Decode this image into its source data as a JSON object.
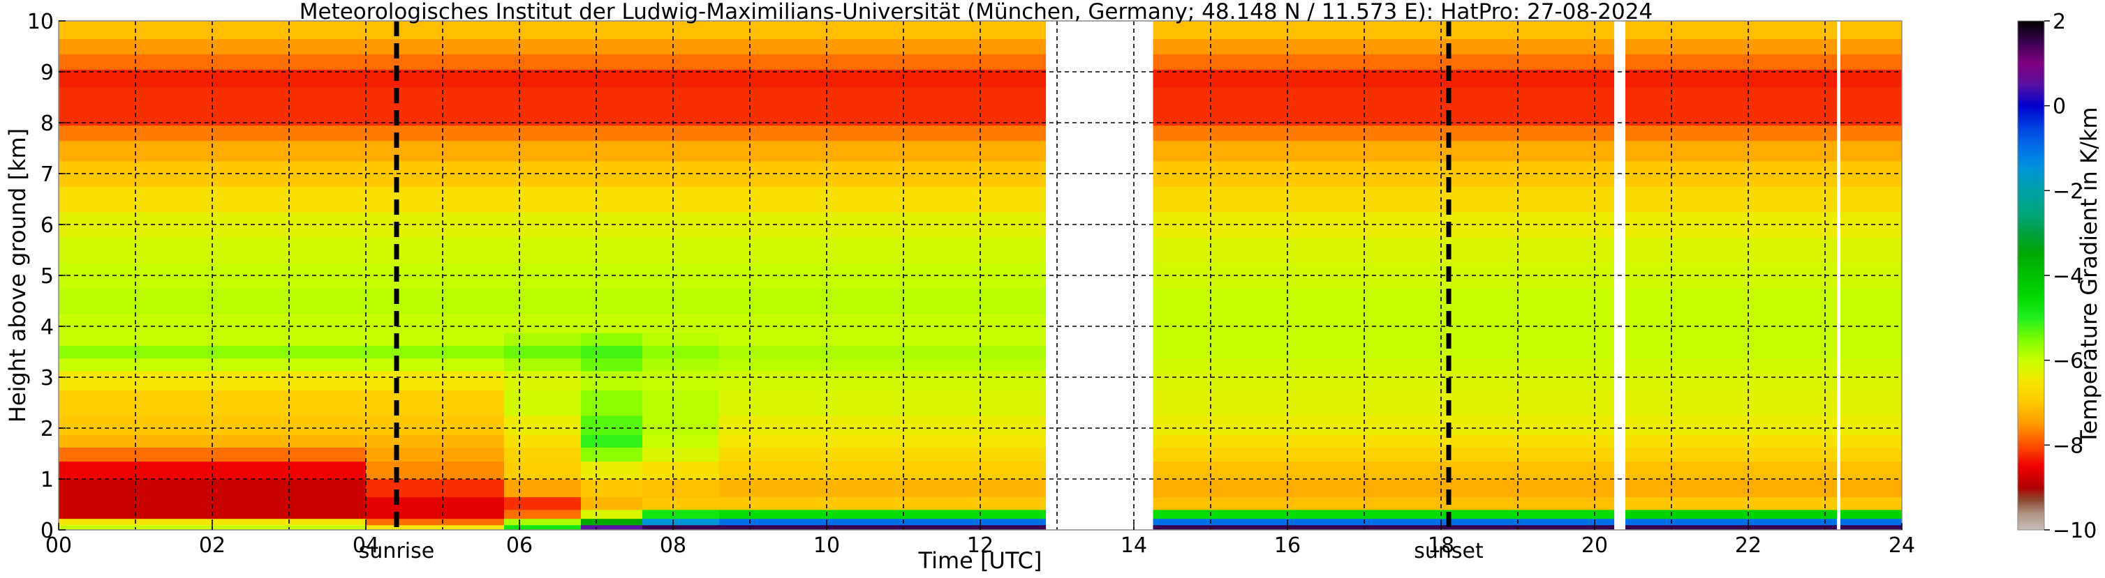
{
  "chart_data": {
    "type": "heatmap",
    "title": "Meteorologisches Institut der Ludwig-Maximilians-Universität (München, Germany; 48.148 N / 11.573 E):    HatPro: 27-08-2024",
    "xlabel": "Time [UTC]",
    "ylabel": "Height above ground [km]",
    "xlim": [
      0,
      24
    ],
    "ylim": [
      0,
      10
    ],
    "x_ticks": [
      0,
      2,
      4,
      6,
      8,
      10,
      12,
      14,
      16,
      18,
      20,
      22,
      24
    ],
    "x_tick_labels": [
      "00",
      "02",
      "04",
      "06",
      "08",
      "10",
      "12",
      "14",
      "16",
      "18",
      "20",
      "22",
      "24"
    ],
    "x_minor_gridlines": [
      1,
      3,
      5,
      7,
      9,
      11,
      13,
      15,
      17,
      19,
      21,
      23
    ],
    "y_ticks": [
      0,
      1,
      2,
      3,
      4,
      5,
      6,
      7,
      8,
      9,
      10
    ],
    "y_tick_labels": [
      "0",
      "1",
      "2",
      "3",
      "4",
      "5",
      "6",
      "7",
      "8",
      "9",
      "10"
    ],
    "grid": true,
    "colorbar": {
      "label": "Temperature Gradient in K/km",
      "range": [
        -10,
        2
      ],
      "ticks": [
        2,
        0,
        -2,
        -4,
        -6,
        -8,
        -10
      ],
      "tick_labels": [
        "2",
        "0",
        "−2",
        "−4",
        "−6",
        "−8",
        "−10"
      ],
      "stops": [
        {
          "value": 2.0,
          "color": "#000000"
        },
        {
          "value": 1.5,
          "color": "#3a0050"
        },
        {
          "value": 1.0,
          "color": "#800080"
        },
        {
          "value": 0.5,
          "color": "#5a10a0"
        },
        {
          "value": 0.0,
          "color": "#0000cd"
        },
        {
          "value": -0.5,
          "color": "#0040e0"
        },
        {
          "value": -1.0,
          "color": "#0070e8"
        },
        {
          "value": -1.5,
          "color": "#0095d8"
        },
        {
          "value": -2.0,
          "color": "#00a0a8"
        },
        {
          "value": -2.5,
          "color": "#00a580"
        },
        {
          "value": -3.0,
          "color": "#00a040"
        },
        {
          "value": -3.5,
          "color": "#00a800"
        },
        {
          "value": -4.0,
          "color": "#00c000"
        },
        {
          "value": -4.5,
          "color": "#00d800"
        },
        {
          "value": -5.0,
          "color": "#20ee20"
        },
        {
          "value": -5.5,
          "color": "#7cfc00"
        },
        {
          "value": -6.0,
          "color": "#c8ff00"
        },
        {
          "value": -6.5,
          "color": "#f5e600"
        },
        {
          "value": -7.0,
          "color": "#ffc800"
        },
        {
          "value": -7.5,
          "color": "#ff9a00"
        },
        {
          "value": -8.0,
          "color": "#ff5000"
        },
        {
          "value": -8.5,
          "color": "#ee0000"
        },
        {
          "value": -9.0,
          "color": "#b00000"
        },
        {
          "value": -9.3,
          "color": "#8a4a30"
        },
        {
          "value": -9.6,
          "color": "#b09080"
        },
        {
          "value": -10.0,
          "color": "#c8c0bc"
        }
      ]
    },
    "heights_km": [
      0.05,
      0.15,
      0.3,
      0.5,
      0.8,
      1.2,
      1.5,
      1.75,
      2.0,
      2.5,
      3.0,
      3.25,
      3.5,
      3.75,
      4.0,
      4.5,
      5.0,
      5.5,
      6.0,
      6.5,
      7.0,
      7.5,
      7.8,
      8.1,
      8.5,
      8.9,
      9.2,
      9.5,
      9.8
    ],
    "series": [
      {
        "time_range": [
          0,
          4
        ],
        "values": [
          -6.0,
          -6.5,
          -8.8,
          -8.8,
          -8.8,
          -8.5,
          -7.8,
          -7.2,
          -7.0,
          -6.9,
          -6.5,
          -6.0,
          -5.6,
          -6.0,
          -6.0,
          -5.9,
          -6.0,
          -6.1,
          -6.3,
          -6.6,
          -7.0,
          -7.3,
          -7.7,
          -8.2,
          -8.2,
          -8.3,
          -7.8,
          -7.5,
          -7.1
        ]
      },
      {
        "time_range": [
          4,
          5.8
        ],
        "values": [
          -6.5,
          -7.8,
          -8.6,
          -8.6,
          -8.2,
          -7.6,
          -7.4,
          -7.2,
          -7.0,
          -6.9,
          -6.5,
          -6.0,
          -5.6,
          -6.0,
          -6.0,
          -5.9,
          -6.0,
          -6.1,
          -6.3,
          -6.6,
          -7.0,
          -7.3,
          -7.7,
          -8.2,
          -8.2,
          -8.3,
          -7.8,
          -7.5,
          -7.1
        ]
      },
      {
        "time_range": [
          5.8,
          6.8
        ],
        "values": [
          -4.8,
          -5.8,
          -7.8,
          -8.2,
          -7.4,
          -6.9,
          -6.8,
          -6.6,
          -6.4,
          -6.1,
          -6.2,
          -5.8,
          -5.4,
          -5.8,
          -6.0,
          -5.9,
          -6.0,
          -6.1,
          -6.3,
          -6.6,
          -7.0,
          -7.3,
          -7.7,
          -8.2,
          -8.2,
          -8.3,
          -7.8,
          -7.5,
          -7.1
        ]
      },
      {
        "time_range": [
          6.8,
          7.6
        ],
        "values": [
          0.5,
          -3.5,
          -6.2,
          -7.2,
          -7.0,
          -6.4,
          -5.6,
          -5.1,
          -5.3,
          -5.6,
          -5.9,
          -5.4,
          -5.2,
          -5.6,
          -6.0,
          -5.9,
          -6.0,
          -6.1,
          -6.3,
          -6.6,
          -7.0,
          -7.3,
          -7.7,
          -8.2,
          -8.2,
          -8.3,
          -7.8,
          -7.5,
          -7.1
        ]
      },
      {
        "time_range": [
          7.6,
          8.6
        ],
        "values": [
          1.5,
          -1.5,
          -4.8,
          -7.0,
          -7.1,
          -6.6,
          -6.2,
          -6.0,
          -5.9,
          -5.9,
          -6.0,
          -5.8,
          -5.6,
          -5.9,
          -6.0,
          -5.9,
          -6.0,
          -6.1,
          -6.3,
          -6.6,
          -7.0,
          -7.3,
          -7.7,
          -8.2,
          -8.2,
          -8.3,
          -7.8,
          -7.5,
          -7.1
        ]
      },
      {
        "time_range": [
          8.6,
          12.85
        ],
        "values": [
          1.5,
          -1.0,
          -4.6,
          -7.0,
          -7.2,
          -6.9,
          -6.7,
          -6.5,
          -6.4,
          -6.2,
          -6.1,
          -5.9,
          -5.8,
          -6.0,
          -6.0,
          -5.9,
          -6.0,
          -6.1,
          -6.3,
          -6.6,
          -7.0,
          -7.3,
          -7.7,
          -8.2,
          -8.2,
          -8.3,
          -7.8,
          -7.5,
          -7.1
        ]
      },
      {
        "time_range": [
          14.25,
          20.25
        ],
        "values": [
          1.5,
          -1.0,
          -4.6,
          -7.1,
          -7.3,
          -7.1,
          -6.8,
          -6.6,
          -6.4,
          -6.3,
          -6.2,
          -6.1,
          -6.0,
          -6.0,
          -6.0,
          -6.0,
          -6.1,
          -6.2,
          -6.4,
          -6.7,
          -7.0,
          -7.3,
          -7.7,
          -8.2,
          -8.2,
          -8.3,
          -7.8,
          -7.5,
          -7.1
        ]
      },
      {
        "time_range": [
          20.4,
          23.15
        ],
        "values": [
          1.5,
          -1.0,
          -4.4,
          -7.0,
          -7.3,
          -7.1,
          -6.8,
          -6.6,
          -6.4,
          -6.3,
          -6.2,
          -6.1,
          -6.0,
          -6.0,
          -6.0,
          -6.0,
          -6.1,
          -6.2,
          -6.4,
          -6.7,
          -7.0,
          -7.3,
          -7.7,
          -8.2,
          -8.2,
          -8.3,
          -7.8,
          -7.5,
          -7.1
        ]
      },
      {
        "time_range": [
          23.2,
          24
        ],
        "values": [
          1.5,
          -1.0,
          -4.4,
          -7.0,
          -7.3,
          -7.1,
          -6.8,
          -6.6,
          -6.4,
          -6.3,
          -6.2,
          -6.1,
          -6.0,
          -6.0,
          -6.0,
          -6.0,
          -6.1,
          -6.2,
          -6.4,
          -6.7,
          -7.0,
          -7.3,
          -7.7,
          -8.2,
          -8.2,
          -8.3,
          -7.8,
          -7.5,
          -7.1
        ]
      }
    ],
    "data_gaps": [
      [
        12.85,
        14.25
      ],
      [
        20.25,
        20.4
      ],
      [
        23.15,
        23.2
      ]
    ],
    "events": [
      {
        "label": "sunrise",
        "time": 4.4
      },
      {
        "label": "sunset",
        "time": 18.1
      }
    ]
  }
}
